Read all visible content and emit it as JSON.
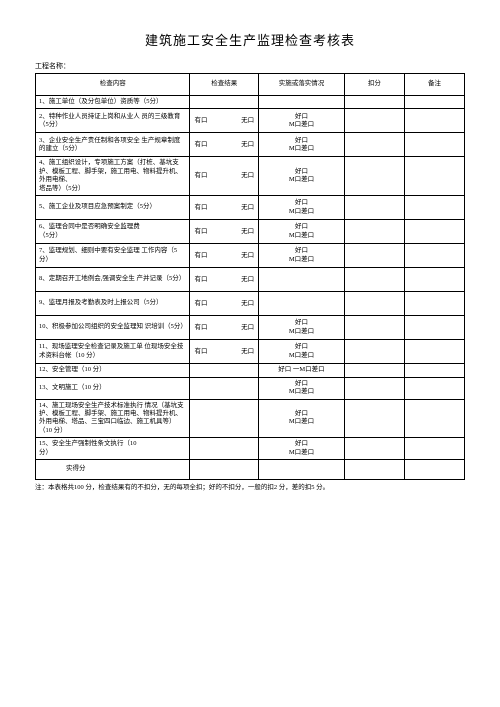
{
  "title": "建筑施工安全生产监理检查考核表",
  "project_label": "工程名称：",
  "headers": {
    "item": "检查内容",
    "result": "检查结果",
    "impl": "实施或落实情况",
    "deduct": "扣分",
    "remark": "备注"
  },
  "result_opts": {
    "has": "有口",
    "none": "无口"
  },
  "impl_opts": {
    "good": "好口",
    "mid": "M口差口",
    "combo": "好口 一M口差口"
  },
  "rows": [
    {
      "item": "1、施工单位（及分包单位）资质等（5分）",
      "has_result": false,
      "impl_type": "none"
    },
    {
      "item": "2、特种作业人员持证上岗和从业人 员的三级教育（5分）",
      "has_result": true,
      "impl_type": "std"
    },
    {
      "item": "3、企业安全生产责任制和各项安全 生产规章制度的建立（5分）",
      "has_result": true,
      "impl_type": "std"
    },
    {
      "item": "4、施工组织设计，专项施工方案（打桩、基坑支护、模板工程、脚手架，施工用电、物料提升机、外用电梯、\n塔品等）（5分）",
      "has_result": true,
      "impl_type": "std"
    },
    {
      "item": "5、施工企业及项目应急预案制定（5分）",
      "has_result": true,
      "impl_type": "std"
    },
    {
      "item": "6、监理合同中是否明确安全监理费\n（5分）",
      "has_result": true,
      "impl_type": "std"
    },
    {
      "item": "7、监理规划、细则中要有安全监理 工作内容（5分）",
      "has_result": true,
      "impl_type": "std"
    },
    {
      "item": "8、定期召开工地例会,强调安全生 产并记录（5分）",
      "has_result": true,
      "impl_type": "none"
    },
    {
      "item": "9、监理月报及考勤表及时上报公司（5分）",
      "has_result": true,
      "impl_type": "none_row"
    },
    {
      "item": "10、积极参加公司组织的安全监理知 识培训（5分）",
      "has_result": true,
      "impl_type": "std"
    },
    {
      "item": "11、现场监理安全检查记录及施工单 位现场安全技术资料台帐（10 分）",
      "has_result": true,
      "impl_type": "std"
    },
    {
      "item": "12、安全管理（10 分）",
      "has_result": false,
      "impl_type": "combo"
    },
    {
      "item": "13、文明施工（10 分）",
      "has_result": false,
      "impl_type": "std"
    },
    {
      "item": "14、施工现场安全生产技术标准执行 情况（基坑支护、模板工程、脚手架、施工用电、物料提升机、外用电梯、塔品、三宝四口临边、施工机具等）\n（10 分）",
      "has_result": false,
      "impl_type": "std"
    },
    {
      "item": "15、安全生产强制性条文执行（10\n分）",
      "has_result": false,
      "impl_type": "std"
    }
  ],
  "score_label": "实得分",
  "notes": "注：本表格共100 分，检查结果有的不扣分，无的每项全扣；好的不扣分，一般的扣2 分，差的扣5 分。"
}
